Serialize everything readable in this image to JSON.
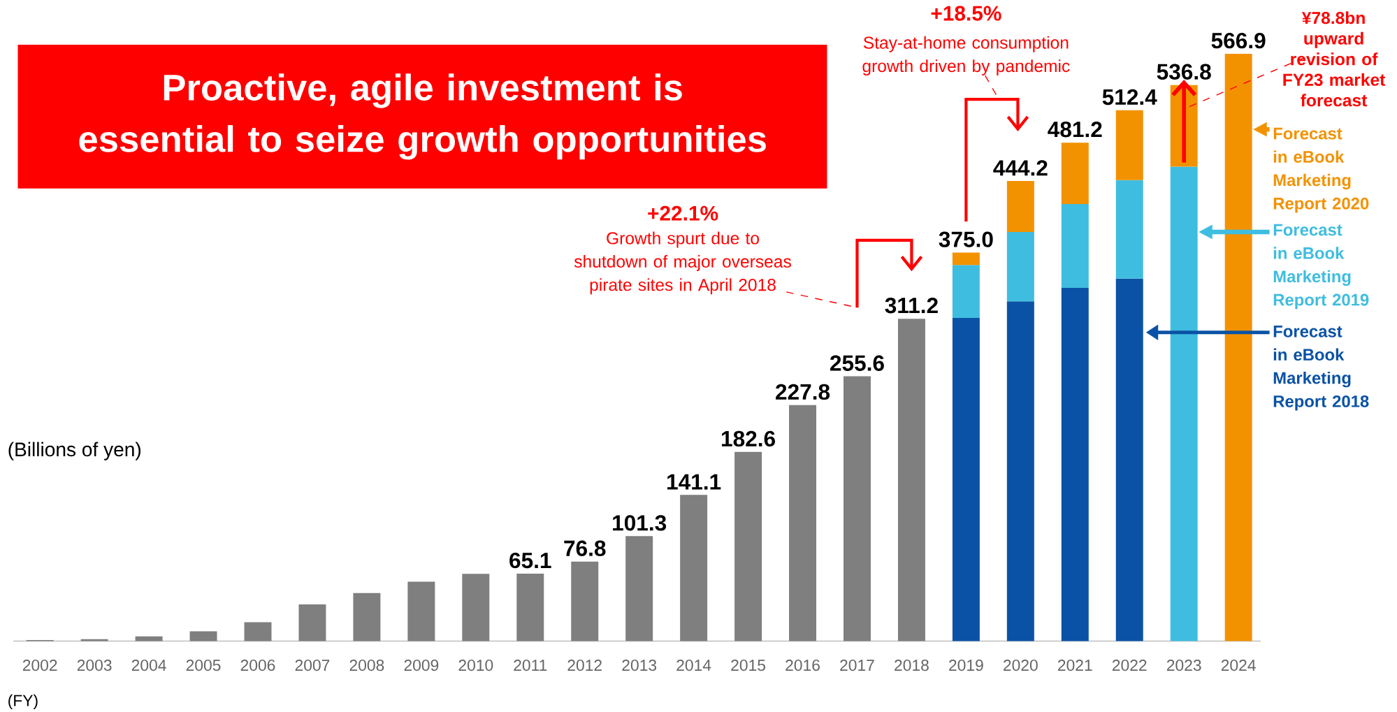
{
  "chart_data": {
    "type": "bar",
    "title": "Proactive, agile investment is essential to seize growth opportunities",
    "ylabel": "(Billions of yen)",
    "xlabel": "(FY)",
    "categories": [
      "2002",
      "2003",
      "2004",
      "2005",
      "2006",
      "2007",
      "2008",
      "2009",
      "2010",
      "2011",
      "2012",
      "2013",
      "2014",
      "2015",
      "2016",
      "2017",
      "2018",
      "2019",
      "2020",
      "2021",
      "2022",
      "2023",
      "2024"
    ],
    "stacked": true,
    "legend": "right",
    "series": [
      {
        "color": "#7f7f7f",
        "values": [
          1.0,
          1.8,
          4.5,
          9.4,
          18.2,
          35.5,
          46.4,
          57.4,
          65.0,
          65.1,
          76.8,
          101.3,
          141.1,
          182.6,
          227.8,
          255.6,
          311.2,
          null,
          null,
          null,
          null,
          null,
          null
        ],
        "value_labels": [
          null,
          null,
          null,
          null,
          null,
          null,
          null,
          null,
          null,
          "65.1",
          "76.8",
          "101.3",
          "141.1",
          "182.6",
          "227.8",
          "255.6",
          "311.2",
          null,
          null,
          null,
          null,
          null,
          null
        ]
      },
      {
        "name": "Forecast in eBook Marketing Report 2018",
        "color": "#0a52a5",
        "values": [
          null,
          null,
          null,
          null,
          null,
          null,
          null,
          null,
          null,
          null,
          null,
          null,
          null,
          null,
          null,
          null,
          null,
          312,
          328,
          341,
          350,
          null,
          null
        ]
      },
      {
        "name": "Forecast in eBook Marketing Report 2019",
        "color": "#3fbde0",
        "values": [
          null,
          null,
          null,
          null,
          null,
          null,
          null,
          null,
          null,
          null,
          null,
          null,
          null,
          null,
          null,
          null,
          null,
          51,
          67,
          81,
          95,
          458.0,
          null
        ]
      },
      {
        "name": "Forecast in eBook Marketing Report 2020",
        "color": "#f39200",
        "values": [
          null,
          null,
          null,
          null,
          null,
          null,
          null,
          null,
          null,
          null,
          null,
          null,
          null,
          null,
          null,
          null,
          null,
          12.0,
          49.2,
          59.2,
          67.4,
          78.8,
          566.9
        ]
      }
    ],
    "totals": [
      null,
      null,
      null,
      null,
      null,
      null,
      null,
      null,
      null,
      null,
      null,
      null,
      null,
      null,
      null,
      null,
      null,
      "375.0",
      "444.2",
      "481.2",
      "512.4",
      "536.8",
      "566.9"
    ],
    "annotations": [
      "+22.1%",
      "Growth spurt due to shutdown of major overseas pirate sites in April 2018",
      "+18.5%",
      "Stay-at-home consumption growth driven by pandemic",
      "¥78.8bn upward revision of FY23 market forecast"
    ]
  }
}
